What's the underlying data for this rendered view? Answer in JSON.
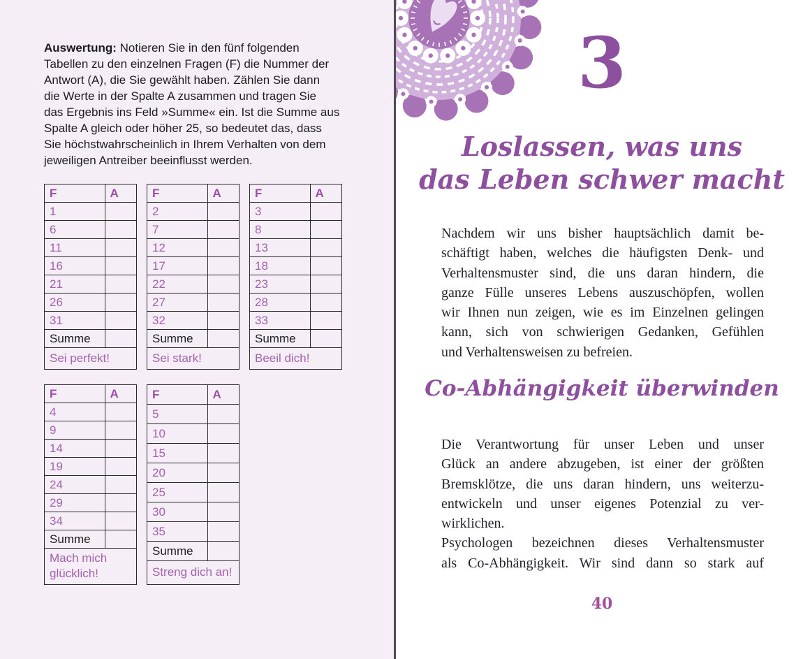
{
  "colors": {
    "page_left_bg": "#f5eef6",
    "accent_purple": "#9c4ea6",
    "table_number_purple": "#a262ad",
    "heading_purple": "#8e4f9e",
    "page_number_purple": "#a0529f",
    "body_text": "#23222a",
    "table_border": "#2a292e",
    "spine": "#524c56",
    "mandala_mid": "#a872b6",
    "mandala_light": "#d0b1dc",
    "mandala_pale": "#ecdef2"
  },
  "icons": {
    "mandala": "doily-heart-mandala-icon"
  },
  "left_page": {
    "evaluation": {
      "lead": "Auswertung:",
      "first_line": "Notieren Sie in den fünf folgenden",
      "rest_lines": [
        "Tabellen zu den einzelnen Fragen (F) die Nummer der",
        "Antwort (A), die Sie gewählt haben. Zählen Sie dann",
        "die Werte in der Spalte A zusammen und tragen Sie",
        "das Ergebnis ins Feld »Summe« ein. Ist die Summe aus",
        "Spalte A gleich oder höher 25, so bedeutet das, dass",
        "Sie höchstwahrscheinlich in Ihrem Verhalten von dem",
        "jeweiligen Antreiber beeinflusst werden."
      ]
    },
    "tables": [
      {
        "col_f": "F",
        "col_a": "A",
        "rows": [
          "1",
          "6",
          "11",
          "16",
          "21",
          "26",
          "31"
        ],
        "sum_label": "Summe",
        "sum_value": "",
        "motto": "Sei perfekt!"
      },
      {
        "col_f": "F",
        "col_a": "A",
        "rows": [
          "2",
          "7",
          "12",
          "17",
          "22",
          "27",
          "32"
        ],
        "sum_label": "Summe",
        "sum_value": "",
        "motto": "Sei stark!"
      },
      {
        "col_f": "F",
        "col_a": "A",
        "rows": [
          "3",
          "8",
          "13",
          "18",
          "23",
          "28",
          "33"
        ],
        "sum_label": "Summe",
        "sum_value": "",
        "motto": "Beeil dich!"
      },
      {
        "col_f": "F",
        "col_a": "A",
        "rows": [
          "4",
          "9",
          "14",
          "19",
          "24",
          "29",
          "34"
        ],
        "sum_label": "Summe",
        "sum_value": "",
        "motto": "Mach mich glücklich!"
      },
      {
        "col_f": "F",
        "col_a": "A",
        "rows": [
          "5",
          "10",
          "15",
          "20",
          "25",
          "30",
          "35"
        ],
        "sum_label": "Summe",
        "sum_value": "",
        "motto": "Streng dich an!"
      }
    ]
  },
  "right_page": {
    "chapter_number": "3",
    "chapter_title_lines": [
      "Loslassen, was uns",
      "das Leben schwer macht"
    ],
    "intro_lines": [
      "Nachdem wir uns bisher hauptsächlich damit be-",
      "schäftigt haben, welches die häufigsten Denk- und",
      "Verhaltensmuster sind, die uns daran hindern, die",
      "ganze Fülle unseres Lebens auszuschöpfen, wollen",
      "wir Ihnen nun zeigen, wie es im Einzelnen gelingen",
      "kann, sich von schwierigen Gedanken, Gefühlen",
      "und Verhaltensweisen zu befreien."
    ],
    "section_heading": "Co-Abhängigkeit überwinden",
    "body_para1_lines": [
      "Die Verantwortung für unser Leben und unser",
      "Glück an andere abzugeben, ist einer der größten",
      "Bremsklötze, die uns daran hindern, uns weiterzu-",
      "entwickeln und unser eigenes Potenzial zu ver-",
      "wirklichen."
    ],
    "body_para2_lines": [
      "Psychologen bezeichnen dieses Verhaltensmuster",
      "als Co-Abhängigkeit. Wir sind dann so stark auf"
    ],
    "page_number": "40"
  }
}
